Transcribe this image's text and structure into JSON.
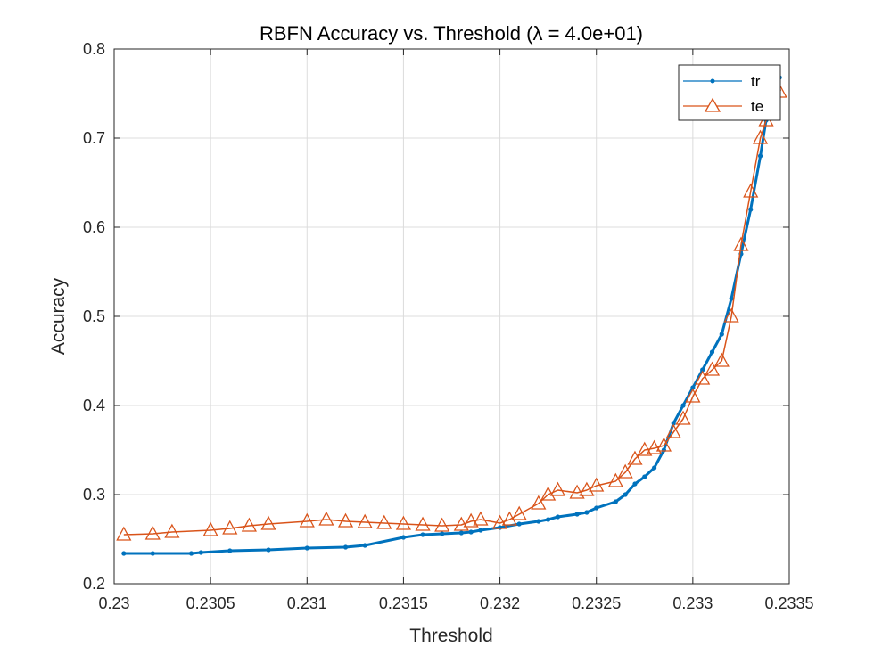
{
  "chart_data": {
    "type": "line",
    "title": "RBFN Accuracy vs. Threshold (λ = 4.0e+01)",
    "xlabel": "Threshold",
    "ylabel": "Accuracy",
    "xlim": [
      0.23,
      0.2335
    ],
    "ylim": [
      0.2,
      0.8
    ],
    "xticks": [
      0.23,
      0.2305,
      0.231,
      0.2315,
      0.232,
      0.2325,
      0.233,
      0.2335
    ],
    "xtick_labels": [
      "0.23",
      "0.2305",
      "0.231",
      "0.2315",
      "0.232",
      "0.2325",
      "0.233",
      "0.2335"
    ],
    "yticks": [
      0.2,
      0.3,
      0.4,
      0.5,
      0.6,
      0.7,
      0.8
    ],
    "ytick_labels": [
      "0.2",
      "0.3",
      "0.4",
      "0.5",
      "0.6",
      "0.7",
      "0.8"
    ],
    "grid": true,
    "legend_position": "top-right",
    "series": [
      {
        "name": "tr",
        "color": "#0072BD",
        "marker": "dot",
        "x": [
          0.23005,
          0.2302,
          0.2304,
          0.23045,
          0.2306,
          0.2308,
          0.231,
          0.2312,
          0.2313,
          0.2315,
          0.2316,
          0.2317,
          0.2318,
          0.23185,
          0.2319,
          0.232,
          0.2321,
          0.2322,
          0.23225,
          0.2323,
          0.2324,
          0.23245,
          0.2325,
          0.2326,
          0.23265,
          0.2327,
          0.23275,
          0.2328,
          0.23285,
          0.2329,
          0.23295,
          0.233,
          0.23305,
          0.2331,
          0.23315,
          0.2332,
          0.23325,
          0.2333,
          0.23335,
          0.23338,
          0.2334,
          0.23342,
          0.23345
        ],
        "y": [
          0.234,
          0.234,
          0.234,
          0.235,
          0.237,
          0.238,
          0.24,
          0.241,
          0.243,
          0.252,
          0.255,
          0.256,
          0.257,
          0.258,
          0.26,
          0.263,
          0.267,
          0.27,
          0.272,
          0.275,
          0.278,
          0.28,
          0.285,
          0.292,
          0.3,
          0.312,
          0.32,
          0.33,
          0.35,
          0.38,
          0.4,
          0.42,
          0.44,
          0.46,
          0.48,
          0.52,
          0.57,
          0.62,
          0.68,
          0.72,
          0.76,
          0.775,
          0.768
        ]
      },
      {
        "name": "te",
        "color": "#D95319",
        "marker": "triangle",
        "x": [
          0.23005,
          0.2302,
          0.2303,
          0.2305,
          0.2306,
          0.2307,
          0.2308,
          0.231,
          0.2311,
          0.2312,
          0.2313,
          0.2314,
          0.2315,
          0.2316,
          0.2317,
          0.2318,
          0.23185,
          0.2319,
          0.232,
          0.23205,
          0.2321,
          0.2322,
          0.23225,
          0.2323,
          0.2324,
          0.23245,
          0.2325,
          0.2326,
          0.23265,
          0.2327,
          0.23275,
          0.2328,
          0.23285,
          0.2329,
          0.23295,
          0.233,
          0.23305,
          0.2331,
          0.23315,
          0.2332,
          0.23325,
          0.2333,
          0.23335,
          0.23338,
          0.2334,
          0.23342,
          0.23345
        ],
        "y": [
          0.255,
          0.256,
          0.258,
          0.26,
          0.262,
          0.265,
          0.267,
          0.27,
          0.272,
          0.27,
          0.269,
          0.268,
          0.267,
          0.266,
          0.265,
          0.266,
          0.27,
          0.272,
          0.268,
          0.272,
          0.278,
          0.29,
          0.3,
          0.305,
          0.302,
          0.305,
          0.31,
          0.315,
          0.325,
          0.34,
          0.35,
          0.352,
          0.355,
          0.37,
          0.385,
          0.41,
          0.43,
          0.44,
          0.45,
          0.5,
          0.58,
          0.64,
          0.7,
          0.72,
          0.74,
          0.76,
          0.752
        ]
      }
    ]
  }
}
